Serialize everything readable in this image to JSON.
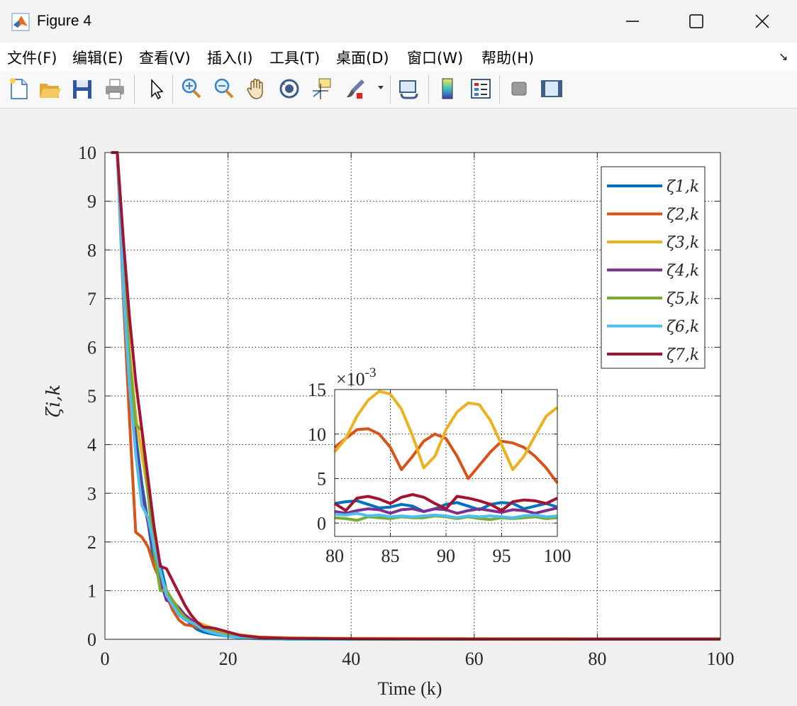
{
  "window": {
    "title": "Figure 4",
    "menu": [
      "文件(F)",
      "编辑(E)",
      "查看(V)",
      "插入(I)",
      "工具(T)",
      "桌面(D)",
      "窗口(W)",
      "帮助(H)"
    ],
    "toolbar_icons": [
      "new-file-icon",
      "open-folder-icon",
      "save-icon",
      "print-icon",
      "pointer-icon",
      "zoom-in-icon",
      "zoom-out-icon",
      "pan-hand-icon",
      "rotate-3d-icon",
      "data-cursor-icon",
      "brush-icon",
      "link-plot-icon",
      "colorbar-icon",
      "legend-icon",
      "hide-plot-tools-icon",
      "show-plot-tools-icon"
    ]
  },
  "chart_data": [
    {
      "type": "line",
      "title": "",
      "xlabel": "Time (k)",
      "ylabel": "ζi,k",
      "xlim": [
        0,
        100
      ],
      "ylim": [
        0,
        10
      ],
      "xticks": [
        0,
        20,
        40,
        60,
        80,
        100
      ],
      "yticks": [
        0,
        1,
        2,
        3,
        4,
        5,
        6,
        7,
        8,
        9,
        10
      ],
      "grid": true,
      "legend_position": "top-right",
      "series": [
        {
          "name": "ζ1,k",
          "color": "#0072BD",
          "x": [
            1,
            2,
            3,
            4,
            5,
            6,
            7,
            8,
            9,
            10,
            11,
            12,
            13,
            14,
            15,
            16,
            17,
            18,
            20,
            22,
            25,
            30,
            40,
            60,
            80,
            100
          ],
          "y": [
            10,
            10,
            7.3,
            5.6,
            4.2,
            3.2,
            2.4,
            1.55,
            1.55,
            1.0,
            0.8,
            0.6,
            0.45,
            0.3,
            0.2,
            0.15,
            0.12,
            0.1,
            0.06,
            0.03,
            0.015,
            0.005,
            0.002,
            0.002,
            0.002,
            0.002
          ]
        },
        {
          "name": "ζ2,k",
          "color": "#D95319",
          "x": [
            1,
            2,
            3,
            4,
            5,
            6,
            7,
            8,
            9,
            10,
            11,
            12,
            13,
            14,
            15,
            16,
            17,
            18,
            20,
            22,
            25,
            30,
            40,
            60,
            80,
            100
          ],
          "y": [
            10,
            10,
            7.0,
            4.5,
            2.2,
            2.1,
            1.9,
            1.5,
            1.2,
            0.9,
            0.6,
            0.4,
            0.3,
            0.28,
            0.25,
            0.2,
            0.18,
            0.15,
            0.1,
            0.06,
            0.03,
            0.015,
            0.01,
            0.009,
            0.009,
            0.009
          ]
        },
        {
          "name": "ζ3,k",
          "color": "#EDB120",
          "x": [
            1,
            2,
            3,
            4,
            5,
            6,
            7,
            8,
            9,
            10,
            11,
            12,
            13,
            14,
            15,
            16,
            17,
            18,
            20,
            22,
            25,
            30,
            40,
            60,
            80,
            100
          ],
          "y": [
            10,
            10,
            7.6,
            5.9,
            4.6,
            3.8,
            3.0,
            2.0,
            1.3,
            1.0,
            0.8,
            0.65,
            0.5,
            0.4,
            0.35,
            0.3,
            0.25,
            0.2,
            0.14,
            0.09,
            0.05,
            0.03,
            0.02,
            0.015,
            0.012,
            0.012
          ]
        },
        {
          "name": "ζ4,k",
          "color": "#7E2F8E",
          "x": [
            1,
            2,
            3,
            4,
            5,
            6,
            7,
            8,
            9,
            10,
            11,
            12,
            13,
            14,
            15,
            16,
            17,
            18,
            20,
            22,
            25,
            30,
            40,
            60,
            80,
            100
          ],
          "y": [
            10,
            10,
            7.4,
            5.5,
            4.0,
            3.0,
            2.4,
            1.8,
            1.2,
            0.8,
            0.75,
            0.65,
            0.5,
            0.4,
            0.3,
            0.2,
            0.15,
            0.12,
            0.07,
            0.04,
            0.02,
            0.005,
            0.002,
            0.002,
            0.002,
            0.002
          ]
        },
        {
          "name": "ζ5,k",
          "color": "#77AC30",
          "x": [
            1,
            2,
            3,
            4,
            5,
            6,
            7,
            8,
            9,
            10,
            11,
            12,
            13,
            14,
            15,
            16,
            17,
            18,
            20,
            22,
            25,
            30,
            40,
            60,
            80,
            100
          ],
          "y": [
            10,
            10,
            7.6,
            5.8,
            4.4,
            4.3,
            3.0,
            1.8,
            1.0,
            1.0,
            0.8,
            0.6,
            0.45,
            0.35,
            0.3,
            0.22,
            0.18,
            0.14,
            0.08,
            0.04,
            0.02,
            0.005,
            0.001,
            0.001,
            0.001,
            0.001
          ]
        },
        {
          "name": "ζ6,k",
          "color": "#4DBEEE",
          "x": [
            1,
            2,
            3,
            4,
            5,
            6,
            7,
            8,
            9,
            10,
            11,
            12,
            13,
            14,
            15,
            16,
            17,
            18,
            20,
            22,
            25,
            30,
            40,
            60,
            80,
            100
          ],
          "y": [
            10,
            10,
            7.2,
            5.2,
            3.8,
            2.75,
            2.5,
            1.9,
            1.4,
            0.9,
            0.7,
            0.5,
            0.4,
            0.35,
            0.28,
            0.2,
            0.15,
            0.12,
            0.06,
            0.03,
            0.01,
            0.005,
            0.001,
            0.001,
            0.001,
            0.001
          ]
        },
        {
          "name": "ζ7,k",
          "color": "#A2142F",
          "x": [
            1,
            2,
            3,
            4,
            5,
            6,
            7,
            8,
            9,
            10,
            11,
            12,
            13,
            14,
            15,
            16,
            17,
            18,
            20,
            22,
            25,
            30,
            40,
            60,
            80,
            100
          ],
          "y": [
            10,
            10,
            8.2,
            6.6,
            5.3,
            4.3,
            3.3,
            2.3,
            1.5,
            1.45,
            1.2,
            0.95,
            0.7,
            0.5,
            0.35,
            0.25,
            0.24,
            0.22,
            0.15,
            0.08,
            0.04,
            0.02,
            0.01,
            0.005,
            0.005,
            0.005
          ]
        }
      ]
    },
    {
      "type": "line",
      "title": "",
      "inset": true,
      "xlim": [
        80,
        100
      ],
      "ylim": [
        -0.0015,
        0.015
      ],
      "xticks": [
        80,
        85,
        90,
        95,
        100
      ],
      "yticks": [
        0,
        0.005,
        0.01,
        0.015
      ],
      "ytick_labels": [
        "0",
        "5",
        "10",
        "15"
      ],
      "exponent_label": "×10",
      "exponent_value": "-3",
      "grid": true,
      "series": [
        {
          "name": "ζ1,k",
          "color": "#0072BD",
          "x": [
            80,
            81,
            82,
            83,
            84,
            85,
            86,
            87,
            88,
            89,
            90,
            91,
            92,
            93,
            94,
            95,
            96,
            97,
            98,
            99,
            100
          ],
          "y": [
            0.0022,
            0.0024,
            0.0025,
            0.0021,
            0.0017,
            0.0018,
            0.0021,
            0.0019,
            0.0013,
            0.0016,
            0.0021,
            0.0023,
            0.0019,
            0.0015,
            0.0021,
            0.0023,
            0.0022,
            0.0016,
            0.0019,
            0.0022,
            0.0018
          ]
        },
        {
          "name": "ζ2,k",
          "color": "#D95319",
          "x": [
            80,
            81,
            82,
            83,
            84,
            85,
            86,
            87,
            88,
            89,
            90,
            91,
            92,
            93,
            94,
            95,
            96,
            97,
            98,
            99,
            100
          ],
          "y": [
            0.0085,
            0.0095,
            0.0105,
            0.0106,
            0.01,
            0.0085,
            0.006,
            0.0075,
            0.0092,
            0.01,
            0.0095,
            0.0075,
            0.005,
            0.0065,
            0.008,
            0.0092,
            0.009,
            0.0085,
            0.0075,
            0.0062,
            0.0045
          ]
        },
        {
          "name": "ζ3,k",
          "color": "#EDB120",
          "x": [
            80,
            81,
            82,
            83,
            84,
            85,
            86,
            87,
            88,
            89,
            90,
            91,
            92,
            93,
            94,
            95,
            96,
            97,
            98,
            99,
            100
          ],
          "y": [
            0.008,
            0.0095,
            0.012,
            0.0138,
            0.0148,
            0.0145,
            0.0128,
            0.0098,
            0.0062,
            0.0075,
            0.0105,
            0.0125,
            0.0135,
            0.0133,
            0.0115,
            0.0088,
            0.006,
            0.0075,
            0.0098,
            0.012,
            0.013
          ]
        },
        {
          "name": "ζ4,k",
          "color": "#7E2F8E",
          "x": [
            80,
            81,
            82,
            83,
            84,
            85,
            86,
            87,
            88,
            89,
            90,
            91,
            92,
            93,
            94,
            95,
            96,
            97,
            98,
            99,
            100
          ],
          "y": [
            0.0013,
            0.0011,
            0.0014,
            0.0016,
            0.0015,
            0.0011,
            0.0015,
            0.0016,
            0.0013,
            0.0016,
            0.0015,
            0.0011,
            0.0014,
            0.0016,
            0.0014,
            0.0012,
            0.0015,
            0.0014,
            0.0011,
            0.0014,
            0.0017
          ]
        },
        {
          "name": "ζ5,k",
          "color": "#77AC30",
          "x": [
            80,
            81,
            82,
            83,
            84,
            85,
            86,
            87,
            88,
            89,
            90,
            91,
            92,
            93,
            94,
            95,
            96,
            97,
            98,
            99,
            100
          ],
          "y": [
            0.0006,
            0.0005,
            0.0003,
            0.0007,
            0.0006,
            0.0005,
            0.0007,
            0.0006,
            0.0006,
            0.0008,
            0.0007,
            0.0005,
            0.0007,
            0.0005,
            0.0004,
            0.0006,
            0.0005,
            0.0006,
            0.0007,
            0.0005,
            0.0006
          ]
        },
        {
          "name": "ζ6,k",
          "color": "#4DBEEE",
          "x": [
            80,
            81,
            82,
            83,
            84,
            85,
            86,
            87,
            88,
            89,
            90,
            91,
            92,
            93,
            94,
            95,
            96,
            97,
            98,
            99,
            100
          ],
          "y": [
            0.001,
            0.0009,
            0.0011,
            0.0008,
            0.0009,
            0.0007,
            0.0008,
            0.0007,
            0.0008,
            0.0009,
            0.0008,
            0.0006,
            0.0008,
            0.0007,
            0.0008,
            0.0007,
            0.0006,
            0.0008,
            0.0009,
            0.0007,
            0.0008
          ]
        },
        {
          "name": "ζ7,k",
          "color": "#A2142F",
          "x": [
            80,
            81,
            82,
            83,
            84,
            85,
            86,
            87,
            88,
            89,
            90,
            91,
            92,
            93,
            94,
            95,
            96,
            97,
            98,
            99,
            100
          ],
          "y": [
            0.0022,
            0.0014,
            0.0028,
            0.003,
            0.0027,
            0.0022,
            0.0029,
            0.0032,
            0.0029,
            0.0022,
            0.0016,
            0.003,
            0.0028,
            0.0025,
            0.0021,
            0.0014,
            0.0024,
            0.0026,
            0.0025,
            0.0022,
            0.0028
          ]
        }
      ]
    }
  ]
}
